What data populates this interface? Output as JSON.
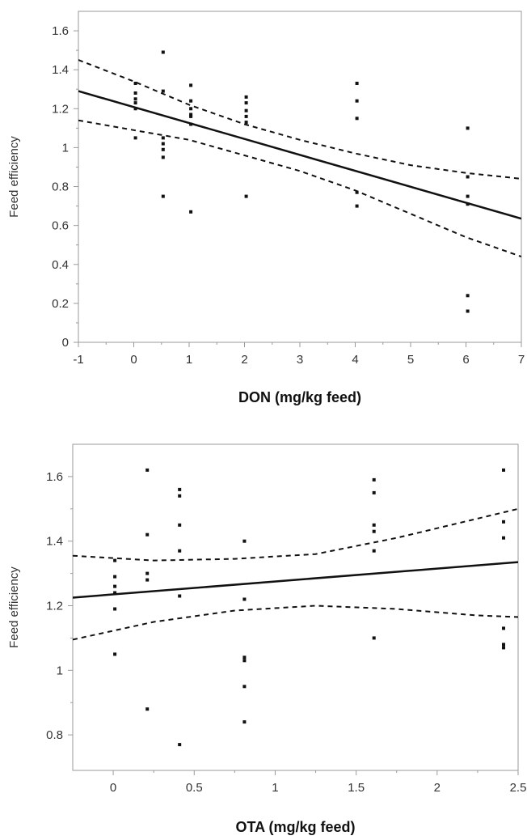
{
  "chart_data": [
    {
      "type": "scatter",
      "title": "",
      "xlabel": "DON (mg/kg feed)",
      "ylabel": "Feed efficiency",
      "xlim": [
        -1,
        7
      ],
      "ylim": [
        0,
        1.7
      ],
      "xticks": [
        -1,
        0,
        1,
        2,
        3,
        4,
        5,
        6,
        7
      ],
      "xtick_labels": [
        "-1",
        "0",
        "1",
        "2",
        "3",
        "4",
        "5",
        "6",
        "7"
      ],
      "yticks": [
        0,
        0.2,
        0.4,
        0.6,
        0.8,
        1,
        1.2,
        1.4,
        1.6
      ],
      "ytick_labels": [
        "0",
        "0.2",
        "0.4",
        "0.6",
        "0.8",
        "1",
        "1.2",
        "1.4",
        "1.6"
      ],
      "grid": false,
      "points": [
        {
          "x": 0.03,
          "y": 1.33
        },
        {
          "x": 0.03,
          "y": 1.28
        },
        {
          "x": 0.03,
          "y": 1.25
        },
        {
          "x": 0.03,
          "y": 1.23
        },
        {
          "x": 0.03,
          "y": 1.2
        },
        {
          "x": 0.03,
          "y": 1.05
        },
        {
          "x": 0.53,
          "y": 1.49
        },
        {
          "x": 0.53,
          "y": 1.29
        },
        {
          "x": 0.53,
          "y": 1.05
        },
        {
          "x": 0.53,
          "y": 1.02
        },
        {
          "x": 0.53,
          "y": 0.99
        },
        {
          "x": 0.53,
          "y": 0.95
        },
        {
          "x": 0.53,
          "y": 0.75
        },
        {
          "x": 1.03,
          "y": 1.32
        },
        {
          "x": 1.03,
          "y": 1.24
        },
        {
          "x": 1.03,
          "y": 1.2
        },
        {
          "x": 1.03,
          "y": 1.17
        },
        {
          "x": 1.03,
          "y": 1.16
        },
        {
          "x": 1.03,
          "y": 1.12
        },
        {
          "x": 1.03,
          "y": 0.67
        },
        {
          "x": 2.03,
          "y": 1.26
        },
        {
          "x": 2.03,
          "y": 1.23
        },
        {
          "x": 2.03,
          "y": 1.19
        },
        {
          "x": 2.03,
          "y": 1.16
        },
        {
          "x": 2.03,
          "y": 1.13
        },
        {
          "x": 2.03,
          "y": 0.75
        },
        {
          "x": 4.03,
          "y": 1.33
        },
        {
          "x": 4.03,
          "y": 1.24
        },
        {
          "x": 4.03,
          "y": 1.15
        },
        {
          "x": 4.03,
          "y": 0.77
        },
        {
          "x": 4.03,
          "y": 0.7
        },
        {
          "x": 6.03,
          "y": 1.1
        },
        {
          "x": 6.03,
          "y": 0.85
        },
        {
          "x": 6.03,
          "y": 0.75
        },
        {
          "x": 6.03,
          "y": 0.71
        },
        {
          "x": 6.03,
          "y": 0.24
        },
        {
          "x": 6.03,
          "y": 0.16
        }
      ],
      "fit_line": {
        "x": [
          -1,
          7
        ],
        "y": [
          1.29,
          0.635
        ]
      },
      "confidence_upper": {
        "x": [
          -1,
          0,
          1,
          2,
          3,
          4,
          5,
          6,
          7
        ],
        "y": [
          1.45,
          1.34,
          1.22,
          1.12,
          1.04,
          0.97,
          0.91,
          0.87,
          0.84
        ]
      },
      "confidence_lower": {
        "x": [
          -1,
          0,
          1,
          2,
          3,
          4,
          5,
          6,
          7
        ],
        "y": [
          1.14,
          1.09,
          1.04,
          0.96,
          0.88,
          0.78,
          0.66,
          0.54,
          0.44
        ]
      }
    },
    {
      "type": "scatter",
      "title": "",
      "xlabel": "OTA (mg/kg feed)",
      "ylabel": "Feed efficiency",
      "xlim": [
        -0.25,
        2.5
      ],
      "ylim": [
        0.69,
        1.7
      ],
      "xticks": [
        0,
        0.5,
        1,
        1.5,
        2,
        2.5
      ],
      "xtick_labels": [
        "0",
        "0.5",
        "1",
        "1.5",
        "2",
        "2.5"
      ],
      "yticks": [
        0.8,
        1,
        1.2,
        1.4,
        1.6
      ],
      "ytick_labels": [
        "0.8",
        "1",
        "1.2",
        "1.4",
        "1.6"
      ],
      "grid": false,
      "points": [
        {
          "x": 0.01,
          "y": 1.34
        },
        {
          "x": 0.01,
          "y": 1.29
        },
        {
          "x": 0.01,
          "y": 1.26
        },
        {
          "x": 0.01,
          "y": 1.24
        },
        {
          "x": 0.01,
          "y": 1.19
        },
        {
          "x": 0.01,
          "y": 1.05
        },
        {
          "x": 0.21,
          "y": 1.62
        },
        {
          "x": 0.21,
          "y": 1.42
        },
        {
          "x": 0.21,
          "y": 1.3
        },
        {
          "x": 0.21,
          "y": 1.28
        },
        {
          "x": 0.21,
          "y": 0.88
        },
        {
          "x": 0.41,
          "y": 1.56
        },
        {
          "x": 0.41,
          "y": 1.54
        },
        {
          "x": 0.41,
          "y": 1.45
        },
        {
          "x": 0.41,
          "y": 1.37
        },
        {
          "x": 0.41,
          "y": 1.23
        },
        {
          "x": 0.41,
          "y": 0.77
        },
        {
          "x": 0.81,
          "y": 1.4
        },
        {
          "x": 0.81,
          "y": 1.22
        },
        {
          "x": 0.81,
          "y": 1.04
        },
        {
          "x": 0.81,
          "y": 1.03
        },
        {
          "x": 0.81,
          "y": 0.95
        },
        {
          "x": 0.81,
          "y": 0.84
        },
        {
          "x": 1.61,
          "y": 1.59
        },
        {
          "x": 1.61,
          "y": 1.55
        },
        {
          "x": 1.61,
          "y": 1.45
        },
        {
          "x": 1.61,
          "y": 1.43
        },
        {
          "x": 1.61,
          "y": 1.37
        },
        {
          "x": 1.61,
          "y": 1.1
        },
        {
          "x": 2.41,
          "y": 1.62
        },
        {
          "x": 2.41,
          "y": 1.46
        },
        {
          "x": 2.41,
          "y": 1.41
        },
        {
          "x": 2.41,
          "y": 1.13
        },
        {
          "x": 2.41,
          "y": 1.08
        },
        {
          "x": 2.41,
          "y": 1.07
        }
      ],
      "fit_line": {
        "x": [
          -0.25,
          2.5
        ],
        "y": [
          1.225,
          1.335
        ]
      },
      "confidence_upper": {
        "x": [
          -0.25,
          0.25,
          0.75,
          1.25,
          1.75,
          2.25,
          2.5
        ],
        "y": [
          1.355,
          1.34,
          1.345,
          1.36,
          1.41,
          1.47,
          1.5
        ]
      },
      "confidence_lower": {
        "x": [
          -0.25,
          0.25,
          0.75,
          1.25,
          1.75,
          2.25,
          2.5
        ],
        "y": [
          1.095,
          1.15,
          1.185,
          1.2,
          1.19,
          1.17,
          1.165
        ]
      }
    }
  ]
}
